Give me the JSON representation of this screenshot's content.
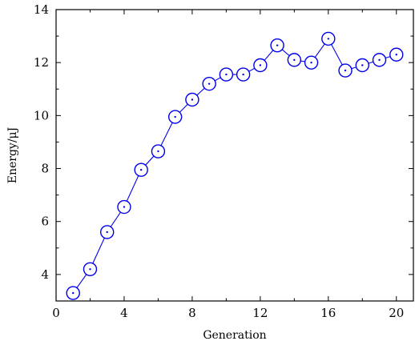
{
  "chart_data": {
    "type": "line",
    "title": "",
    "xlabel": "Generation",
    "ylabel": "Energy/μJ",
    "xlim": [
      0,
      21
    ],
    "ylim": [
      3,
      14
    ],
    "xticks": [
      0,
      4,
      8,
      12,
      16,
      20
    ],
    "xticks_minor": [
      2,
      6,
      10,
      14,
      18
    ],
    "yticks": [
      4,
      6,
      8,
      10,
      12,
      14
    ],
    "yticks_minor": [
      5,
      7,
      9,
      11,
      13
    ],
    "grid": false,
    "marker": "circle-with-center-dot",
    "colors": {
      "series": "#0000ee",
      "axis": "#000000"
    },
    "series": [
      {
        "x": [
          1,
          2,
          3,
          4,
          5,
          6,
          7,
          8,
          9,
          10,
          11,
          12,
          13,
          14,
          15,
          16,
          17,
          18,
          19,
          20
        ],
        "values": [
          3.3,
          4.2,
          5.6,
          6.55,
          7.95,
          8.65,
          9.95,
          10.6,
          11.2,
          11.55,
          11.55,
          11.9,
          12.65,
          12.1,
          12.0,
          12.9,
          11.7,
          11.9,
          12.1,
          12.3
        ]
      }
    ]
  }
}
